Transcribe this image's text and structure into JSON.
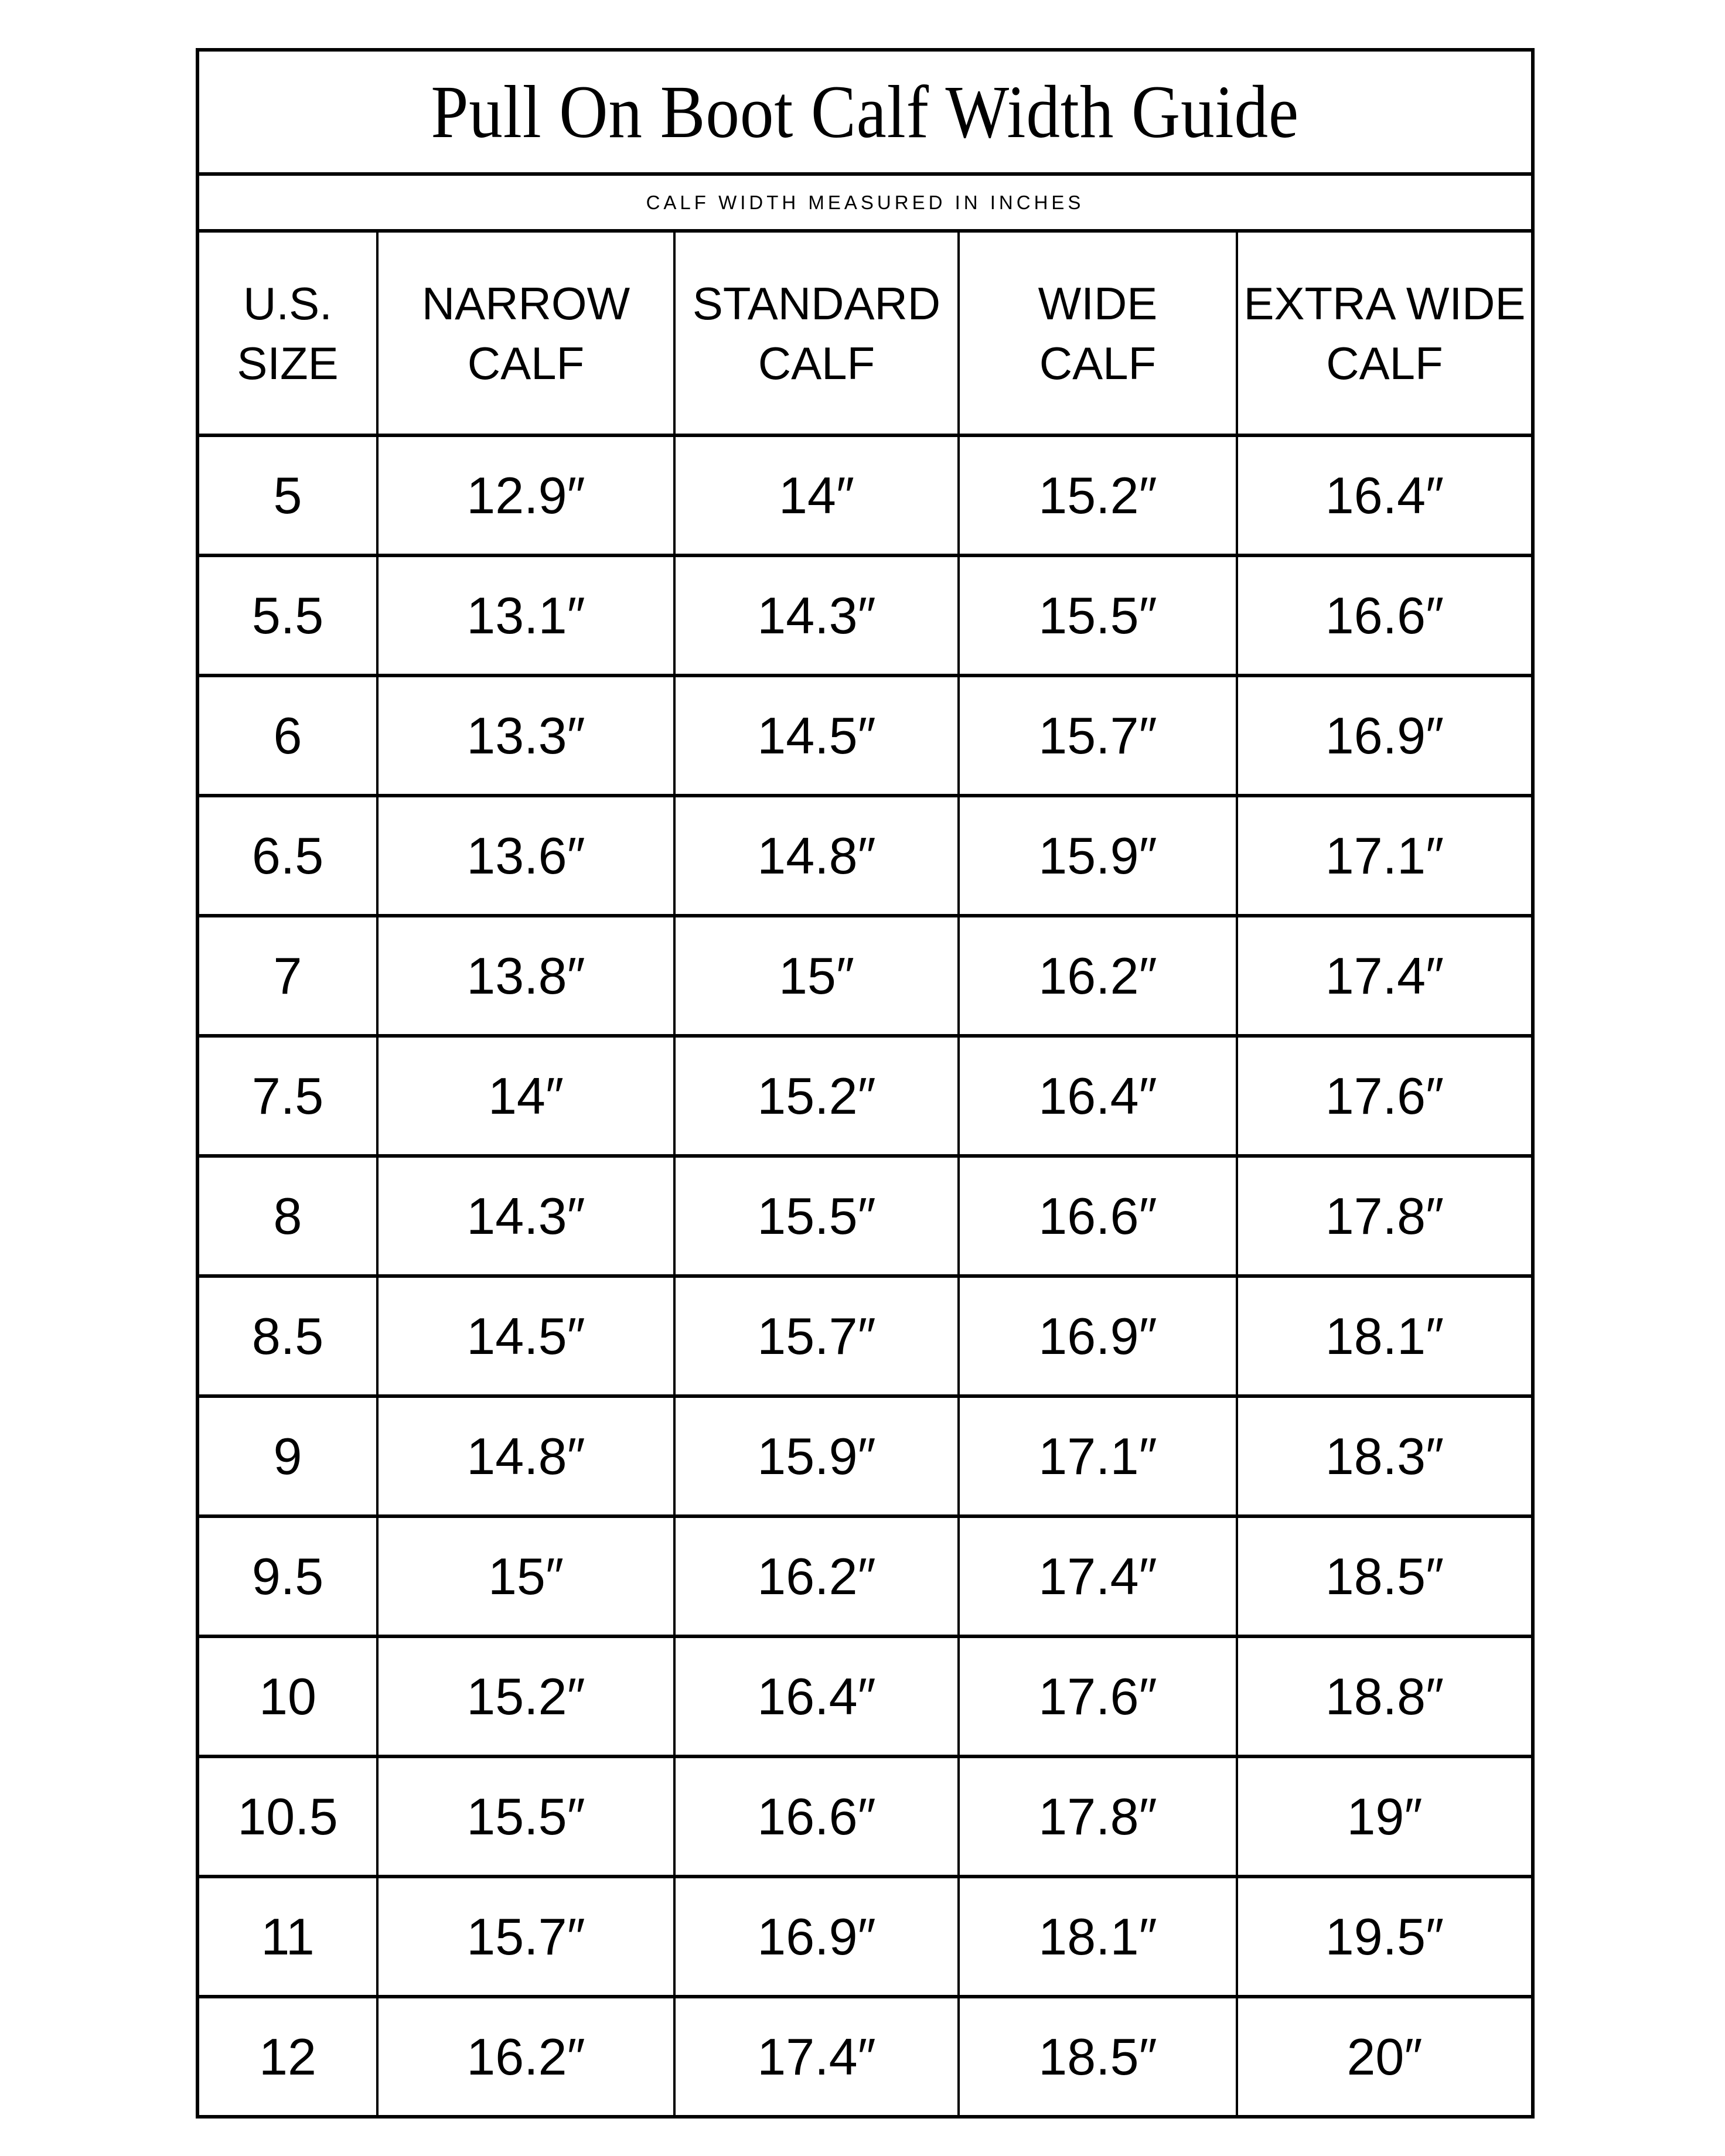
{
  "title": "Pull On Boot Calf Width Guide",
  "subtitle": "CALF WIDTH MEASURED IN INCHES",
  "columns": [
    [
      "U.S.",
      "SIZE"
    ],
    [
      "NARROW",
      "CALF"
    ],
    [
      "STANDARD",
      "CALF"
    ],
    [
      "WIDE",
      "CALF"
    ],
    [
      "EXTRA WIDE",
      "CALF"
    ]
  ],
  "rows": [
    [
      "5",
      "12.9″",
      "14″",
      "15.2″",
      "16.4″"
    ],
    [
      "5.5",
      "13.1″",
      "14.3″",
      "15.5″",
      "16.6″"
    ],
    [
      "6",
      "13.3″",
      "14.5″",
      "15.7″",
      "16.9″"
    ],
    [
      "6.5",
      "13.6″",
      "14.8″",
      "15.9″",
      "17.1″"
    ],
    [
      "7",
      "13.8″",
      "15″",
      "16.2″",
      "17.4″"
    ],
    [
      "7.5",
      "14″",
      "15.2″",
      "16.4″",
      "17.6″"
    ],
    [
      "8",
      "14.3″",
      "15.5″",
      "16.6″",
      "17.8″"
    ],
    [
      "8.5",
      "14.5″",
      "15.7″",
      "16.9″",
      "18.1″"
    ],
    [
      "9",
      "14.8″",
      "15.9″",
      "17.1″",
      "18.3″"
    ],
    [
      "9.5",
      "15″",
      "16.2″",
      "17.4″",
      "18.5″"
    ],
    [
      "10",
      "15.2″",
      "16.4″",
      "17.6″",
      "18.8″"
    ],
    [
      "10.5",
      "15.5″",
      "16.6″",
      "17.8″",
      "19″"
    ],
    [
      "11",
      "15.7″",
      "16.9″",
      "18.1″",
      "19.5″"
    ],
    [
      "12",
      "16.2″",
      "17.4″",
      "18.5″",
      "20″"
    ]
  ]
}
